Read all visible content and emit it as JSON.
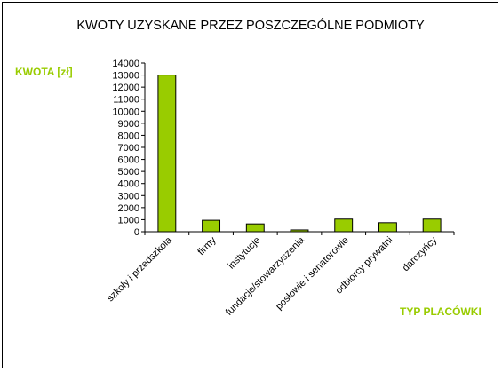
{
  "chart_data": {
    "type": "bar",
    "title": "KWOTY UZYSKANE PRZEZ POSZCZEGÓLNE PODMIOTY",
    "ylabel": "KWOTA [zł]",
    "xlabel": "TYP PLACÓWKI",
    "categories": [
      "szkoły i przedszkola",
      "firmy",
      "instytucje",
      "fundacje/stowarzyszenia",
      "posłowie i senatorowie",
      "odbiorcy prywatni",
      "darczyńcy"
    ],
    "values": [
      13000,
      950,
      650,
      150,
      1050,
      750,
      1050
    ],
    "ylim": [
      0,
      14000
    ],
    "yticks": [
      0,
      1000,
      2000,
      3000,
      4000,
      5000,
      6000,
      7000,
      8000,
      9000,
      10000,
      11000,
      12000,
      13000,
      14000
    ],
    "grid": false,
    "legend": "none",
    "bar_color": "#99cc00",
    "axis_label_color": "#99cc00"
  }
}
